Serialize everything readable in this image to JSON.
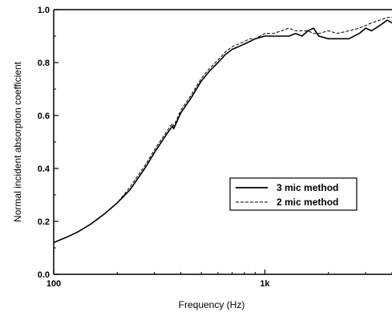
{
  "chart_data": {
    "type": "line",
    "xlabel": "Frequency (Hz)",
    "ylabel": "Normal incident absorption coefficient",
    "xscale": "log",
    "xlim": [
      100,
      4000
    ],
    "ylim": [
      0.0,
      1.0
    ],
    "xticks": [
      {
        "value": 100,
        "label": "100"
      },
      {
        "value": 1000,
        "label": "1k"
      }
    ],
    "yticks": [
      {
        "value": 0.0,
        "label": "0.0"
      },
      {
        "value": 0.2,
        "label": "0.2"
      },
      {
        "value": 0.4,
        "label": "0.4"
      },
      {
        "value": 0.6,
        "label": "0.6"
      },
      {
        "value": 0.8,
        "label": "0.8"
      },
      {
        "value": 1.0,
        "label": "1.0"
      }
    ],
    "grid": false,
    "legend": {
      "position": "lower-right"
    },
    "series": [
      {
        "name": "3 mic method",
        "style": "solid",
        "x": [
          100,
          115,
          130,
          150,
          175,
          200,
          230,
          270,
          300,
          330,
          350,
          365,
          370,
          380,
          400,
          450,
          500,
          550,
          600,
          650,
          700,
          750,
          800,
          850,
          900,
          1000,
          1100,
          1200,
          1300,
          1400,
          1500,
          1600,
          1700,
          1800,
          2000,
          2200,
          2500,
          2800,
          3000,
          3200,
          3500,
          3800,
          4000
        ],
        "y": [
          0.12,
          0.14,
          0.16,
          0.19,
          0.23,
          0.27,
          0.32,
          0.4,
          0.46,
          0.51,
          0.54,
          0.56,
          0.55,
          0.57,
          0.61,
          0.67,
          0.73,
          0.77,
          0.8,
          0.83,
          0.85,
          0.86,
          0.87,
          0.88,
          0.89,
          0.9,
          0.9,
          0.9,
          0.9,
          0.91,
          0.9,
          0.92,
          0.93,
          0.9,
          0.89,
          0.89,
          0.89,
          0.91,
          0.93,
          0.92,
          0.94,
          0.96,
          0.95
        ]
      },
      {
        "name": "2 mic method",
        "style": "dashed",
        "x": [
          100,
          115,
          130,
          150,
          175,
          200,
          230,
          270,
          300,
          330,
          350,
          365,
          370,
          380,
          400,
          450,
          500,
          550,
          600,
          650,
          700,
          750,
          800,
          850,
          900,
          1000,
          1100,
          1200,
          1300,
          1400,
          1500,
          1600,
          1700,
          1800,
          2000,
          2200,
          2500,
          2800,
          3000,
          3200,
          3500,
          3800,
          4000
        ],
        "y": [
          0.12,
          0.14,
          0.16,
          0.19,
          0.23,
          0.27,
          0.33,
          0.41,
          0.47,
          0.52,
          0.55,
          0.57,
          0.56,
          0.58,
          0.62,
          0.68,
          0.74,
          0.78,
          0.81,
          0.84,
          0.86,
          0.87,
          0.88,
          0.89,
          0.89,
          0.91,
          0.91,
          0.92,
          0.93,
          0.92,
          0.92,
          0.92,
          0.91,
          0.91,
          0.92,
          0.91,
          0.92,
          0.93,
          0.94,
          0.95,
          0.96,
          0.97,
          0.97
        ]
      }
    ]
  }
}
